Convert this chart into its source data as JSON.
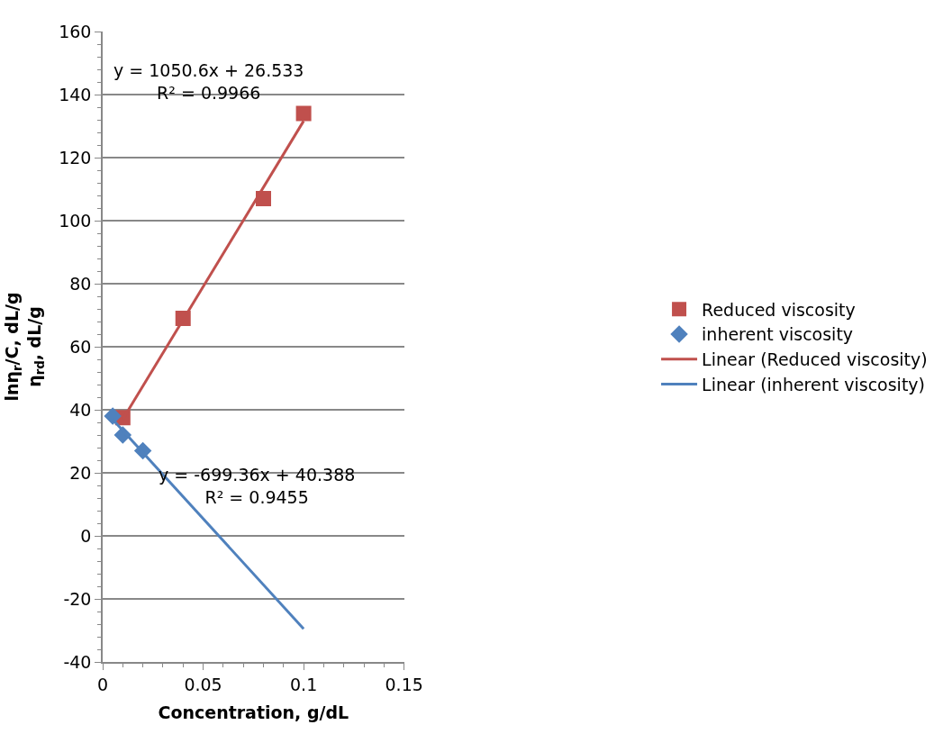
{
  "chart_data": {
    "type": "scatter",
    "xlabel": "Concentration, g/dL",
    "ylabel": "lnη$_{r}$/C, dL/g\nη$_{rd}$, dL/g",
    "xlim": [
      0,
      0.15
    ],
    "xticks": [
      0,
      0.05,
      0.1,
      0.15
    ],
    "ylim": [
      -40,
      160
    ],
    "yticks": [
      -40,
      -20,
      0,
      20,
      40,
      60,
      80,
      100,
      120,
      140,
      160
    ],
    "grid": "y",
    "legend": "right",
    "series": [
      {
        "name": "Reduced viscosity",
        "color": "#c0504d",
        "marker": "square",
        "x": [
          0.01,
          0.04,
          0.08,
          0.1
        ],
        "values": [
          37.5,
          69,
          107,
          134
        ]
      },
      {
        "name": "inherent viscosity",
        "color": "#4f81bd",
        "marker": "diamond",
        "x": [
          0.005,
          0.01,
          0.02
        ],
        "values": [
          38,
          32,
          27
        ]
      },
      {
        "name": "Linear (Reduced viscosity)",
        "type": "line",
        "color": "#c0504d",
        "marker": "none",
        "line_style": "solid",
        "x": [
          0.01,
          0.1
        ],
        "values": [
          37,
          131.6
        ]
      },
      {
        "name": "Linear (inherent viscosity)",
        "type": "line",
        "color": "#4f81bd",
        "marker": "none",
        "line_style": "solid",
        "x": [
          0.005,
          0.1
        ],
        "values": [
          36.9,
          -29.5
        ]
      }
    ],
    "annotations": [
      "y = 1050.6x + 26.533\nR² = 0.9966",
      "y = -699.36x + 40.388\nR² = 0.9455"
    ]
  }
}
